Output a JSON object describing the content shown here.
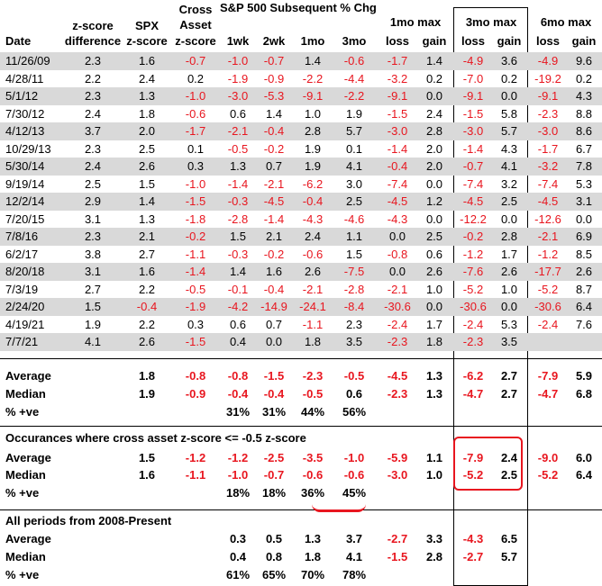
{
  "headers": {
    "date": "Date",
    "zdiff_top": "z-score",
    "zdiff_bottom": "difference",
    "spx_top": "SPX",
    "spx_bottom": "z-score",
    "cross_top1": "Cross",
    "cross_top2": "Asset",
    "cross_bottom": "z-score",
    "sp500_group": "S&P 500 Subsequent % Chg",
    "wk1": "1wk",
    "wk2": "2wk",
    "mo1": "1mo",
    "mo3": "3mo",
    "max1mo": "1mo max",
    "max3mo": "3mo max",
    "max6mo": "6mo max",
    "loss": "loss",
    "gain": "gain"
  },
  "rows": [
    {
      "date": "11/26/09",
      "zdiff": "2.3",
      "spx": "1.6",
      "cross": "-0.7",
      "w1": "-1.0",
      "w2": "-0.7",
      "m1": "1.4",
      "m3": "-0.6",
      "l1": "-1.7",
      "g1": "1.4",
      "l3": "-4.9",
      "g3": "3.6",
      "l6": "-4.9",
      "g6": "9.6"
    },
    {
      "date": "4/28/11",
      "zdiff": "2.2",
      "spx": "2.4",
      "cross": "0.2",
      "w1": "-1.9",
      "w2": "-0.9",
      "m1": "-2.2",
      "m3": "-4.4",
      "l1": "-3.2",
      "g1": "0.2",
      "l3": "-7.0",
      "g3": "0.2",
      "l6": "-19.2",
      "g6": "0.2"
    },
    {
      "date": "5/1/12",
      "zdiff": "2.3",
      "spx": "1.3",
      "cross": "-1.0",
      "w1": "-3.0",
      "w2": "-5.3",
      "m1": "-9.1",
      "m3": "-2.2",
      "l1": "-9.1",
      "g1": "0.0",
      "l3": "-9.1",
      "g3": "0.0",
      "l6": "-9.1",
      "g6": "4.3"
    },
    {
      "date": "7/30/12",
      "zdiff": "2.4",
      "spx": "1.8",
      "cross": "-0.6",
      "w1": "0.6",
      "w2": "1.4",
      "m1": "1.0",
      "m3": "1.9",
      "l1": "-1.5",
      "g1": "2.4",
      "l3": "-1.5",
      "g3": "5.8",
      "l6": "-2.3",
      "g6": "8.8"
    },
    {
      "date": "4/12/13",
      "zdiff": "3.7",
      "spx": "2.0",
      "cross": "-1.7",
      "w1": "-2.1",
      "w2": "-0.4",
      "m1": "2.8",
      "m3": "5.7",
      "l1": "-3.0",
      "g1": "2.8",
      "l3": "-3.0",
      "g3": "5.7",
      "l6": "-3.0",
      "g6": "8.6"
    },
    {
      "date": "10/29/13",
      "zdiff": "2.3",
      "spx": "2.5",
      "cross": "0.1",
      "w1": "-0.5",
      "w2": "-0.2",
      "m1": "1.9",
      "m3": "0.1",
      "l1": "-1.4",
      "g1": "2.0",
      "l3": "-1.4",
      "g3": "4.3",
      "l6": "-1.7",
      "g6": "6.7"
    },
    {
      "date": "5/30/14",
      "zdiff": "2.4",
      "spx": "2.6",
      "cross": "0.3",
      "w1": "1.3",
      "w2": "0.7",
      "m1": "1.9",
      "m3": "4.1",
      "l1": "-0.4",
      "g1": "2.0",
      "l3": "-0.7",
      "g3": "4.1",
      "l6": "-3.2",
      "g6": "7.8"
    },
    {
      "date": "9/19/14",
      "zdiff": "2.5",
      "spx": "1.5",
      "cross": "-1.0",
      "w1": "-1.4",
      "w2": "-2.1",
      "m1": "-6.2",
      "m3": "3.0",
      "l1": "-7.4",
      "g1": "0.0",
      "l3": "-7.4",
      "g3": "3.2",
      "l6": "-7.4",
      "g6": "5.3"
    },
    {
      "date": "12/2/14",
      "zdiff": "2.9",
      "spx": "1.4",
      "cross": "-1.5",
      "w1": "-0.3",
      "w2": "-4.5",
      "m1": "-0.4",
      "m3": "2.5",
      "l1": "-4.5",
      "g1": "1.2",
      "l3": "-4.5",
      "g3": "2.5",
      "l6": "-4.5",
      "g6": "3.1"
    },
    {
      "date": "7/20/15",
      "zdiff": "3.1",
      "spx": "1.3",
      "cross": "-1.8",
      "w1": "-2.8",
      "w2": "-1.4",
      "m1": "-4.3",
      "m3": "-4.6",
      "l1": "-4.3",
      "g1": "0.0",
      "l3": "-12.2",
      "g3": "0.0",
      "l6": "-12.6",
      "g6": "0.0"
    },
    {
      "date": "7/8/16",
      "zdiff": "2.3",
      "spx": "2.1",
      "cross": "-0.2",
      "w1": "1.5",
      "w2": "2.1",
      "m1": "2.4",
      "m3": "1.1",
      "l1": "0.0",
      "g1": "2.5",
      "l3": "-0.2",
      "g3": "2.8",
      "l6": "-2.1",
      "g6": "6.9"
    },
    {
      "date": "6/2/17",
      "zdiff": "3.8",
      "spx": "2.7",
      "cross": "-1.1",
      "w1": "-0.3",
      "w2": "-0.2",
      "m1": "-0.6",
      "m3": "1.5",
      "l1": "-0.8",
      "g1": "0.6",
      "l3": "-1.2",
      "g3": "1.7",
      "l6": "-1.2",
      "g6": "8.5"
    },
    {
      "date": "8/20/18",
      "zdiff": "3.1",
      "spx": "1.6",
      "cross": "-1.4",
      "w1": "1.4",
      "w2": "1.6",
      "m1": "2.6",
      "m3": "-7.5",
      "l1": "0.0",
      "g1": "2.6",
      "l3": "-7.6",
      "g3": "2.6",
      "l6": "-17.7",
      "g6": "2.6"
    },
    {
      "date": "7/3/19",
      "zdiff": "2.7",
      "spx": "2.2",
      "cross": "-0.5",
      "w1": "-0.1",
      "w2": "-0.4",
      "m1": "-2.1",
      "m3": "-2.8",
      "l1": "-2.1",
      "g1": "1.0",
      "l3": "-5.2",
      "g3": "1.0",
      "l6": "-5.2",
      "g6": "8.7"
    },
    {
      "date": "2/24/20",
      "zdiff": "1.5",
      "spx": "-0.4",
      "cross": "-1.9",
      "w1": "-4.2",
      "w2": "-14.9",
      "m1": "-24.1",
      "m3": "-8.4",
      "l1": "-30.6",
      "g1": "0.0",
      "l3": "-30.6",
      "g3": "0.0",
      "l6": "-30.6",
      "g6": "6.4"
    },
    {
      "date": "4/19/21",
      "zdiff": "1.9",
      "spx": "2.2",
      "cross": "0.3",
      "w1": "0.6",
      "w2": "0.7",
      "m1": "-1.1",
      "m3": "2.3",
      "l1": "-2.4",
      "g1": "1.7",
      "l3": "-2.4",
      "g3": "5.3",
      "l6": "-2.4",
      "g6": "7.6"
    },
    {
      "date": "7/7/21",
      "zdiff": "4.1",
      "spx": "2.6",
      "cross": "-1.5",
      "w1": "0.4",
      "w2": "0.0",
      "m1": "1.8",
      "m3": "3.5",
      "l1": "-2.3",
      "g1": "1.8",
      "l3": "-2.3",
      "g3": "3.5",
      "l6": "",
      "g6": ""
    }
  ],
  "summary1": {
    "average": {
      "label": "Average",
      "spx": "1.8",
      "cross": "-0.8",
      "w1": "-0.8",
      "w2": "-1.5",
      "m1": "-2.3",
      "m3": "-0.5",
      "l1": "-4.5",
      "g1": "1.3",
      "l3": "-6.2",
      "g3": "2.7",
      "l6": "-7.9",
      "g6": "5.9"
    },
    "median": {
      "label": "Median",
      "spx": "1.9",
      "cross": "-0.9",
      "w1": "-0.4",
      "w2": "-0.4",
      "m1": "-0.5",
      "m3": "0.6",
      "l1": "-2.3",
      "g1": "1.3",
      "l3": "-4.7",
      "g3": "2.7",
      "l6": "-4.7",
      "g6": "6.8"
    },
    "pct": {
      "label": "% +ve",
      "w1": "31%",
      "w2": "31%",
      "m1": "44%",
      "m3": "56%"
    }
  },
  "summary2": {
    "title": "Occurances where cross asset z-score <= -0.5 z-score",
    "average": {
      "label": "Average",
      "spx": "1.5",
      "cross": "-1.2",
      "w1": "-1.2",
      "w2": "-2.5",
      "m1": "-3.5",
      "m3": "-1.0",
      "l1": "-5.9",
      "g1": "1.1",
      "l3": "-7.9",
      "g3": "2.4",
      "l6": "-9.0",
      "g6": "6.0"
    },
    "median": {
      "label": "Median",
      "spx": "1.6",
      "cross": "-1.1",
      "w1": "-1.0",
      "w2": "-0.7",
      "m1": "-0.6",
      "m3": "-0.6",
      "l1": "-3.0",
      "g1": "1.0",
      "l3": "-5.2",
      "g3": "2.5",
      "l6": "-5.2",
      "g6": "6.4"
    },
    "pct": {
      "label": "% +ve",
      "w1": "18%",
      "w2": "18%",
      "m1": "36%",
      "m3": "45%"
    }
  },
  "summary3": {
    "title": "All periods from 2008-Present",
    "average": {
      "label": "Average",
      "w1": "0.3",
      "w2": "0.5",
      "m1": "1.3",
      "m3": "3.7",
      "l1": "-2.7",
      "g1": "3.3",
      "l3": "-4.3",
      "g3": "6.5"
    },
    "median": {
      "label": "Median",
      "w1": "0.4",
      "w2": "0.8",
      "m1": "1.8",
      "m3": "4.1",
      "l1": "-1.5",
      "g1": "2.8",
      "l3": "-2.7",
      "g3": "5.7"
    },
    "pct": {
      "label": "% +ve",
      "w1": "61%",
      "w2": "65%",
      "m1": "70%",
      "m3": "78%"
    }
  },
  "colors": {
    "negative": "#e8161f",
    "shade": "#d9d9d9"
  }
}
